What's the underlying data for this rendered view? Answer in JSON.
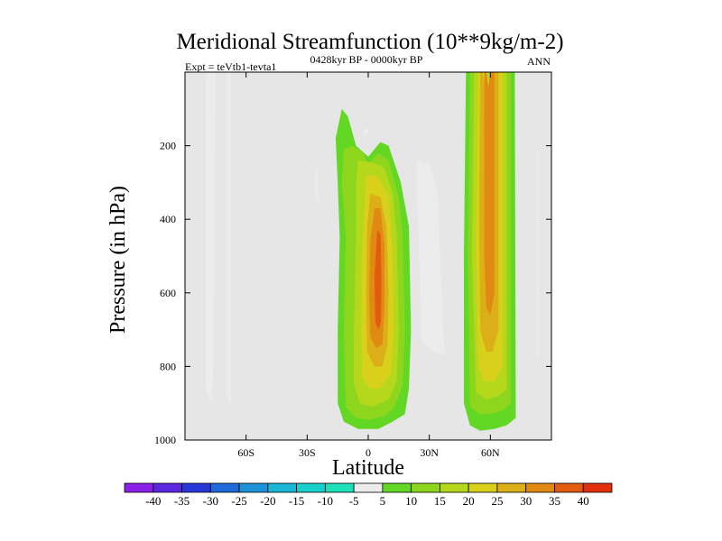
{
  "chart_data": {
    "type": "heatmap",
    "title": "Meridional Streamfunction (10**9kg/m-2)",
    "subtitle": "0428kyr BP - 0000kyr BP",
    "left_label": "Expt = teVtb1-tevta1",
    "right_label": "ANN",
    "xlabel": "Latitude",
    "ylabel": "Pressure (in hPa)",
    "xlim": [
      -90,
      90
    ],
    "ylim": [
      0,
      1000
    ],
    "y_inverted": true,
    "x_ticks": [
      {
        "value": -60,
        "label": "60S"
      },
      {
        "value": -30,
        "label": "30S"
      },
      {
        "value": 0,
        "label": "0"
      },
      {
        "value": 30,
        "label": "30N"
      },
      {
        "value": 60,
        "label": "60N"
      }
    ],
    "y_ticks": [
      {
        "value": 200,
        "label": "200"
      },
      {
        "value": 400,
        "label": "400"
      },
      {
        "value": 600,
        "label": "600"
      },
      {
        "value": 800,
        "label": "800"
      },
      {
        "value": 1000,
        "label": "1000"
      }
    ],
    "background_color": "#e6e6e6",
    "colorbar": {
      "levels": [
        "-40",
        "-35",
        "-30",
        "-25",
        "-20",
        "-15",
        "-10",
        "-5",
        "5",
        "10",
        "15",
        "20",
        "25",
        "30",
        "35",
        "40"
      ],
      "colors": [
        "#8a20e8",
        "#5a28e0",
        "#2838d8",
        "#1f6ad8",
        "#1e92d8",
        "#1ab6d6",
        "#18d0cc",
        "#1ee0b8",
        "#ececec",
        "#62d825",
        "#8ed61e",
        "#b6d81c",
        "#d8d01a",
        "#dcae17",
        "#e08a14",
        "#e25c10",
        "#e2300c"
      ]
    },
    "regions": [
      {
        "name": "sh-cell-left",
        "level": -5,
        "points": [
          [
            -80,
            0
          ],
          [
            -75,
            0
          ],
          [
            -76,
            800
          ],
          [
            -77,
            900
          ],
          [
            -80,
            860
          ]
        ]
      },
      {
        "name": "sh-cell-thin",
        "level": -5,
        "points": [
          [
            -69.5,
            0
          ],
          [
            -67.5,
            0
          ],
          [
            -67.5,
            900
          ],
          [
            -69.5,
            880
          ]
        ]
      },
      {
        "name": "tropical-patch",
        "level": -5,
        "points": [
          [
            -26,
            260
          ],
          [
            -25,
            260
          ],
          [
            -24.5,
            355
          ],
          [
            -25.5,
            350
          ]
        ]
      },
      {
        "name": "small-blob",
        "level": -5,
        "points": [
          [
            -2,
            150
          ],
          [
            0,
            155
          ],
          [
            0,
            170
          ],
          [
            -2,
            175
          ]
        ]
      },
      {
        "name": "nh-cell-west",
        "level": -5,
        "points": [
          [
            24,
            240
          ],
          [
            30,
            250
          ],
          [
            34,
            320
          ],
          [
            37,
            720
          ],
          [
            38,
            770
          ],
          [
            32,
            760
          ],
          [
            26,
            730
          ],
          [
            25,
            500
          ],
          [
            24,
            340
          ]
        ]
      },
      {
        "name": "nh-cell-east",
        "level": -5,
        "points": [
          [
            83,
            210
          ],
          [
            84,
            220
          ],
          [
            84,
            770
          ],
          [
            83,
            770
          ]
        ]
      },
      {
        "name": "hadley-5",
        "level": 5,
        "points": [
          [
            -16,
            180
          ],
          [
            -13,
            100
          ],
          [
            -10,
            120
          ],
          [
            -6,
            200
          ],
          [
            0,
            230
          ],
          [
            6,
            190
          ],
          [
            10,
            200
          ],
          [
            16,
            300
          ],
          [
            20,
            420
          ],
          [
            21,
            700
          ],
          [
            20,
            860
          ],
          [
            18,
            930
          ],
          [
            12,
            950
          ],
          [
            5,
            970
          ],
          [
            -5,
            970
          ],
          [
            -12,
            950
          ],
          [
            -15,
            900
          ],
          [
            -15,
            700
          ],
          [
            -14,
            450
          ],
          [
            -15,
            300
          ]
        ]
      },
      {
        "name": "hadley-10",
        "level": 10,
        "points": [
          [
            -12,
            210
          ],
          [
            -8,
            200
          ],
          [
            -3,
            215
          ],
          [
            0,
            250
          ],
          [
            5,
            220
          ],
          [
            10,
            240
          ],
          [
            15,
            340
          ],
          [
            17,
            450
          ],
          [
            18,
            700
          ],
          [
            17,
            850
          ],
          [
            13,
            910
          ],
          [
            8,
            935
          ],
          [
            0,
            945
          ],
          [
            -6,
            940
          ],
          [
            -11,
            910
          ],
          [
            -12,
            700
          ],
          [
            -11,
            450
          ],
          [
            -13,
            300
          ]
        ]
      },
      {
        "name": "hadley-15",
        "level": 15,
        "points": [
          [
            -5,
            240
          ],
          [
            2,
            245
          ],
          [
            8,
            260
          ],
          [
            12,
            330
          ],
          [
            14,
            450
          ],
          [
            15,
            700
          ],
          [
            14,
            840
          ],
          [
            10,
            890
          ],
          [
            2,
            910
          ],
          [
            -4,
            900
          ],
          [
            -7,
            850
          ],
          [
            -7,
            700
          ],
          [
            -6,
            450
          ],
          [
            -6,
            300
          ]
        ]
      },
      {
        "name": "hadley-20",
        "level": 20,
        "points": [
          [
            -1,
            280
          ],
          [
            5,
            285
          ],
          [
            10,
            340
          ],
          [
            12,
            480
          ],
          [
            12.5,
            700
          ],
          [
            11,
            820
          ],
          [
            6,
            860
          ],
          [
            1,
            860
          ],
          [
            -3,
            830
          ],
          [
            -3.5,
            700
          ],
          [
            -3,
            480
          ]
        ]
      },
      {
        "name": "hadley-25",
        "level": 25,
        "points": [
          [
            1,
            330
          ],
          [
            6,
            340
          ],
          [
            9,
            420
          ],
          [
            10,
            600
          ],
          [
            9.5,
            740
          ],
          [
            7,
            800
          ],
          [
            3,
            800
          ],
          [
            -0.5,
            760
          ],
          [
            -1,
            600
          ],
          [
            -0.5,
            420
          ]
        ]
      },
      {
        "name": "hadley-30",
        "level": 30,
        "points": [
          [
            3,
            370
          ],
          [
            6,
            370
          ],
          [
            8,
            470
          ],
          [
            8,
            640
          ],
          [
            7,
            740
          ],
          [
            4,
            750
          ],
          [
            1,
            720
          ],
          [
            0.5,
            600
          ],
          [
            1,
            460
          ]
        ]
      },
      {
        "name": "hadley-35",
        "level": 35,
        "points": [
          [
            4.5,
            430
          ],
          [
            6,
            440
          ],
          [
            6.5,
            560
          ],
          [
            6.2,
            680
          ],
          [
            5,
            700
          ],
          [
            3.5,
            680
          ],
          [
            3,
            560
          ]
        ]
      },
      {
        "name": "ferrel-5",
        "level": 5,
        "points": [
          [
            48,
            0
          ],
          [
            72,
            0
          ],
          [
            72.5,
            940
          ],
          [
            68,
            960
          ],
          [
            62,
            970
          ],
          [
            55,
            975
          ],
          [
            50,
            960
          ],
          [
            47,
            900
          ],
          [
            47,
            500
          ]
        ]
      },
      {
        "name": "ferrel-10",
        "level": 10,
        "points": [
          [
            50,
            0
          ],
          [
            70,
            0
          ],
          [
            70,
            900
          ],
          [
            66,
            920
          ],
          [
            60,
            930
          ],
          [
            55,
            930
          ],
          [
            50,
            910
          ],
          [
            49,
            500
          ]
        ]
      },
      {
        "name": "ferrel-15",
        "level": 15,
        "points": [
          [
            52,
            0
          ],
          [
            68,
            0
          ],
          [
            68,
            860
          ],
          [
            64,
            880
          ],
          [
            58,
            890
          ],
          [
            53,
            870
          ],
          [
            51,
            500
          ]
        ]
      },
      {
        "name": "ferrel-20",
        "level": 20,
        "points": [
          [
            54,
            0
          ],
          [
            57,
            0
          ],
          [
            59,
            20
          ],
          [
            61,
            0
          ],
          [
            66,
            0
          ],
          [
            66,
            800
          ],
          [
            62,
            840
          ],
          [
            57,
            840
          ],
          [
            54,
            800
          ],
          [
            53,
            500
          ]
        ]
      },
      {
        "name": "ferrel-25",
        "level": 25,
        "points": [
          [
            55,
            0
          ],
          [
            56,
            0
          ],
          [
            58,
            60
          ],
          [
            60,
            30
          ],
          [
            62,
            0
          ],
          [
            64,
            0
          ],
          [
            64,
            700
          ],
          [
            61,
            760
          ],
          [
            58,
            760
          ],
          [
            55,
            700
          ],
          [
            54.5,
            400
          ]
        ]
      },
      {
        "name": "ferrel-30",
        "level": 30,
        "points": [
          [
            57,
            0
          ],
          [
            58,
            0
          ],
          [
            59,
            40
          ],
          [
            60,
            0
          ],
          [
            62,
            0
          ],
          [
            62,
            600
          ],
          [
            60,
            660
          ],
          [
            58,
            640
          ],
          [
            57,
            500
          ]
        ]
      }
    ]
  }
}
